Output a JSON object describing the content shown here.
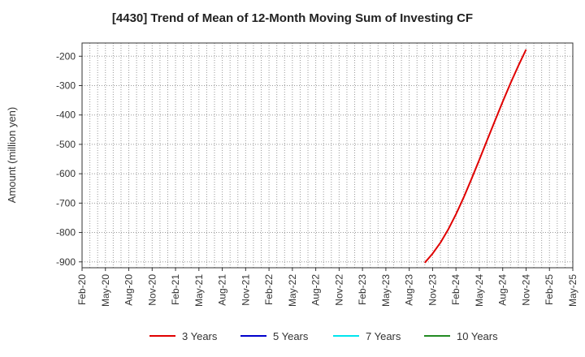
{
  "chart_data": {
    "type": "line",
    "title": "[4430]  Trend of Mean of 12-Month Moving Sum of Investing CF",
    "ylabel": "Amount (million yen)",
    "xlabel": "",
    "ylim": [
      -920,
      -155
    ],
    "yticks": [
      -200,
      -300,
      -400,
      -500,
      -600,
      -700,
      -800,
      -900
    ],
    "x_tick_labels": [
      "Feb-20",
      "May-20",
      "Aug-20",
      "Nov-20",
      "Feb-21",
      "May-21",
      "Aug-21",
      "Nov-21",
      "Feb-22",
      "May-22",
      "Aug-22",
      "Nov-22",
      "Feb-23",
      "May-23",
      "Aug-23",
      "Nov-23",
      "Feb-24",
      "May-24",
      "Aug-24",
      "Nov-24",
      "Feb-25",
      "May-25"
    ],
    "grid": true,
    "legend_position": "bottom",
    "series": [
      {
        "name": "3 Years",
        "color": "#e00000",
        "x": [
          "Oct-23",
          "Nov-23",
          "Dec-23",
          "Jan-24",
          "Feb-24",
          "Mar-24",
          "Apr-24",
          "May-24",
          "Jun-24",
          "Jul-24",
          "Aug-24",
          "Sep-24",
          "Oct-24",
          "Nov-24"
        ],
        "values": [
          -903,
          -872,
          -835,
          -790,
          -738,
          -680,
          -617,
          -552,
          -486,
          -420,
          -355,
          -292,
          -233,
          -177
        ]
      },
      {
        "name": "5 Years",
        "color": "#0000cc",
        "x": [],
        "values": []
      },
      {
        "name": "7 Years",
        "color": "#00e5ee",
        "x": [],
        "values": []
      },
      {
        "name": "10 Years",
        "color": "#228b22",
        "x": [],
        "values": []
      }
    ]
  }
}
